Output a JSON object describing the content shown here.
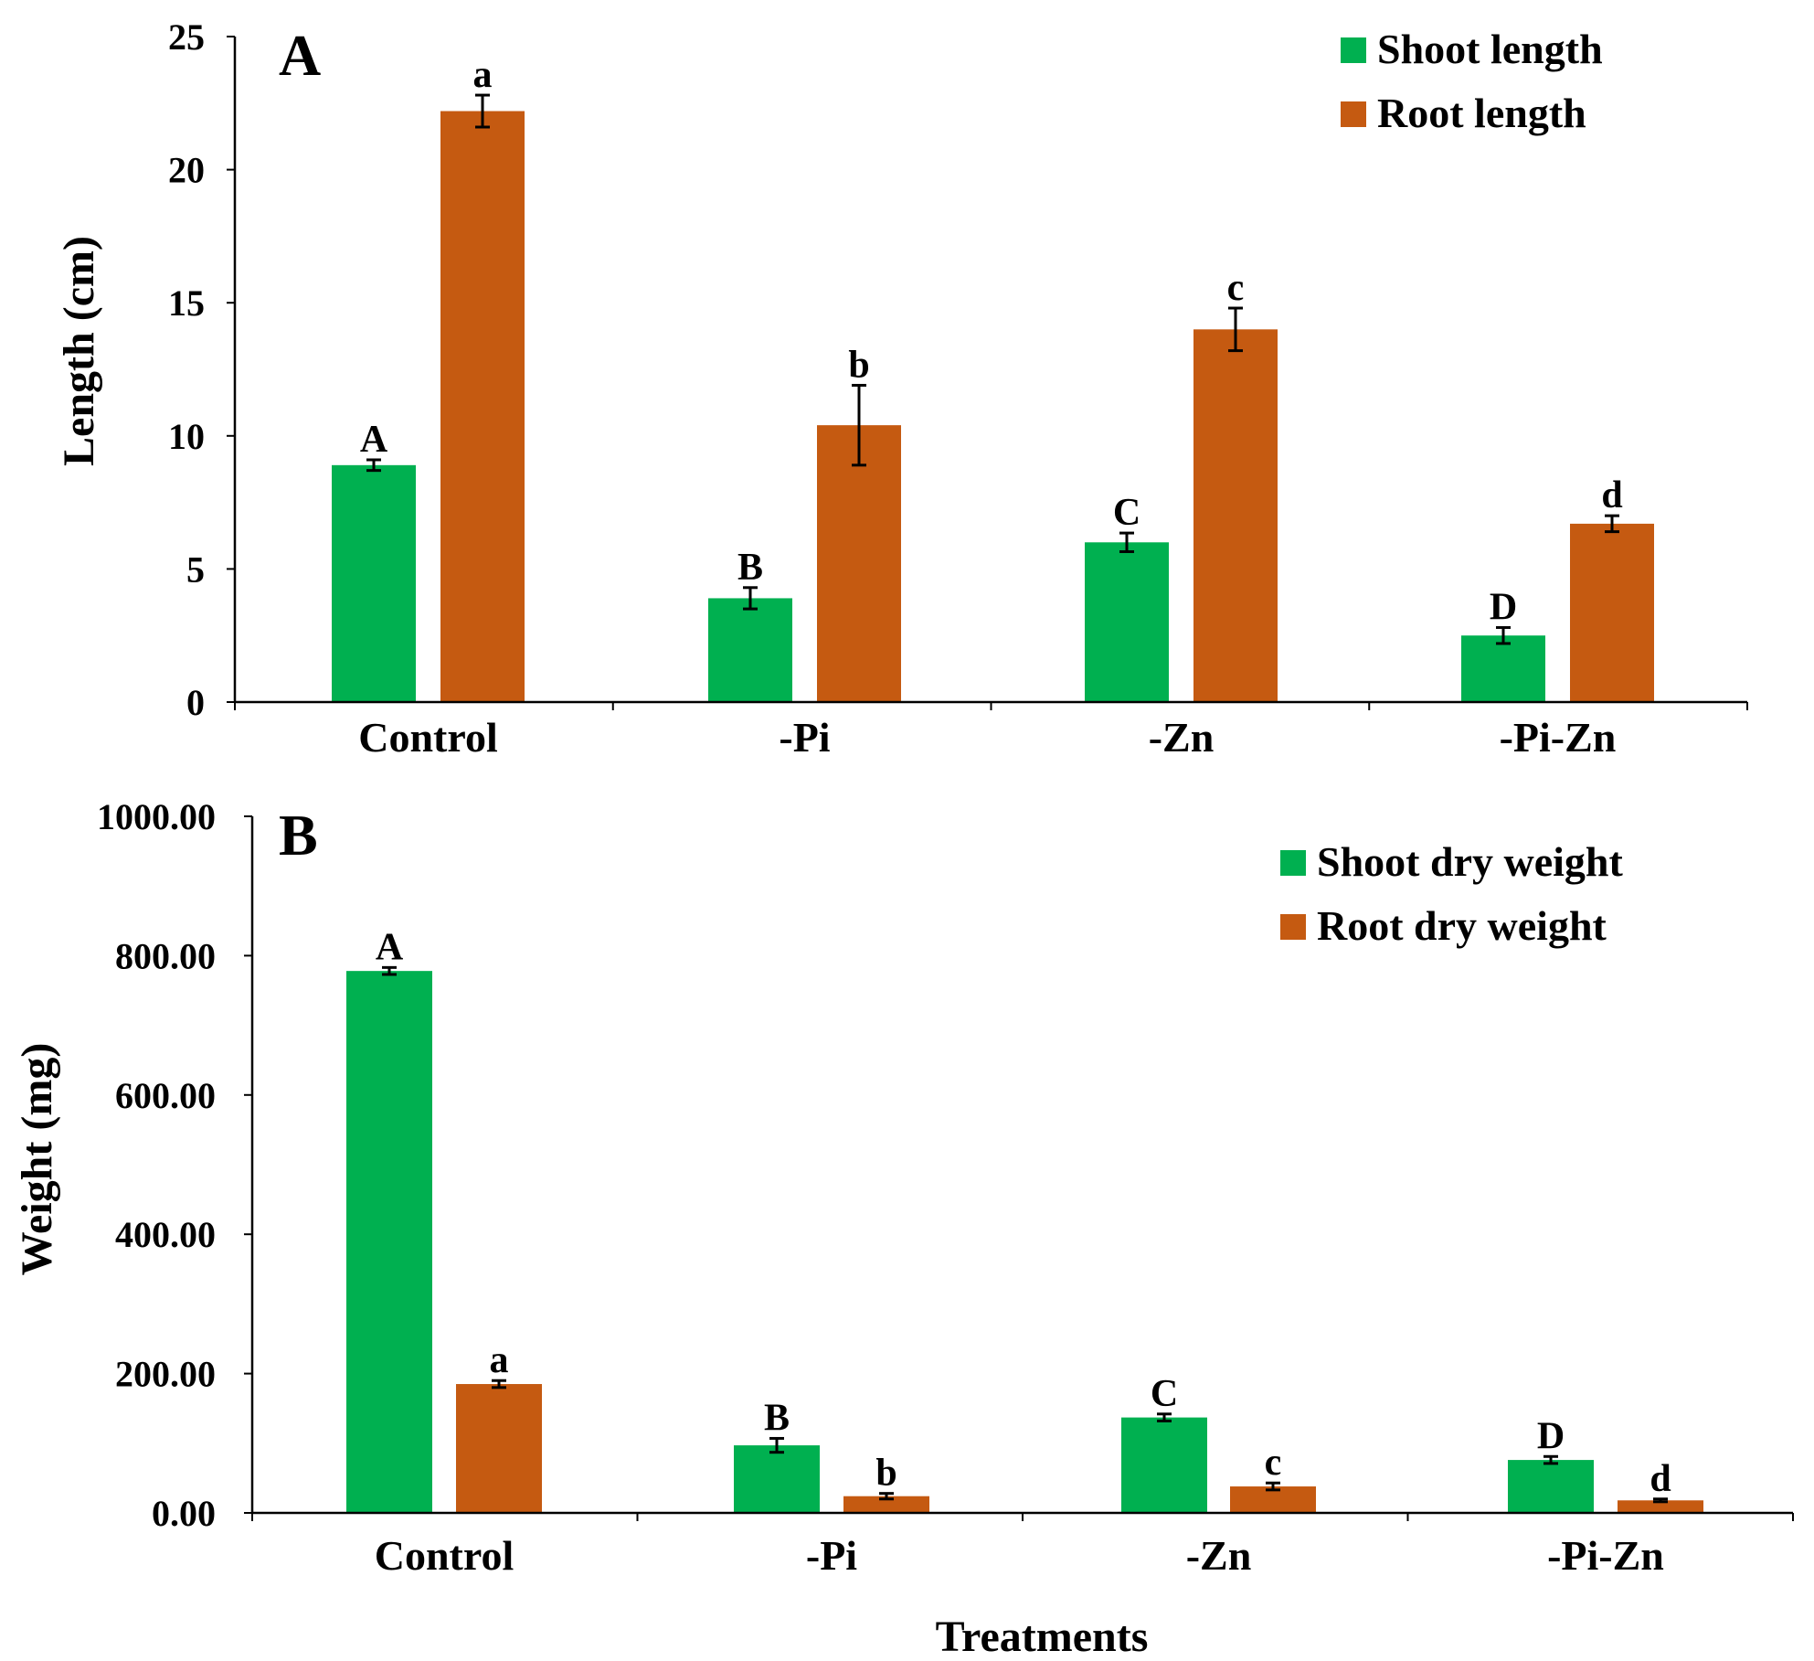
{
  "colors": {
    "shoot": "#00B050",
    "root": "#C55A11",
    "axis": "#000000"
  },
  "chart_data": [
    {
      "panel": "A",
      "type": "bar",
      "categories": [
        "Control",
        "-Pi",
        "-Zn",
        "-Pi-Zn"
      ],
      "ylabel": "Length (cm)",
      "xlabel": "",
      "ylim": [
        0,
        25
      ],
      "yticks": [
        "0",
        "5",
        "10",
        "15",
        "20",
        "25"
      ],
      "legend_position": "top-right",
      "series": [
        {
          "name": "Shoot length",
          "color_key": "shoot",
          "values": [
            8.9,
            3.9,
            6.0,
            2.5
          ],
          "errors": [
            0.2,
            0.4,
            0.35,
            0.3
          ],
          "letters": [
            "A",
            "B",
            "C",
            "D"
          ]
        },
        {
          "name": "Root length",
          "color_key": "root",
          "values": [
            22.2,
            10.4,
            14.0,
            6.7
          ],
          "errors": [
            0.6,
            1.5,
            0.8,
            0.3
          ],
          "letters": [
            "a",
            "b",
            "c",
            "d"
          ]
        }
      ]
    },
    {
      "panel": "B",
      "type": "bar",
      "categories": [
        "Control",
        "-Pi",
        "-Zn",
        "-Pi-Zn"
      ],
      "ylabel": "Weight (mg)",
      "xlabel": "Treatments",
      "ylim": [
        0,
        1000
      ],
      "yticks": [
        "0.00",
        "200.00",
        "400.00",
        "600.00",
        "800.00",
        "1000.00"
      ],
      "legend_position": "top-right",
      "series": [
        {
          "name": "Shoot dry weight",
          "color_key": "shoot",
          "values": [
            778,
            97,
            137,
            76
          ],
          "errors": [
            5,
            10,
            5,
            5
          ],
          "letters": [
            "A",
            "B",
            "C",
            "D"
          ]
        },
        {
          "name": "Root dry weight",
          "color_key": "root",
          "values": [
            185,
            24,
            38,
            18
          ],
          "errors": [
            5,
            4,
            5,
            2
          ],
          "letters": [
            "a",
            "b",
            "c",
            "d"
          ]
        }
      ]
    }
  ]
}
